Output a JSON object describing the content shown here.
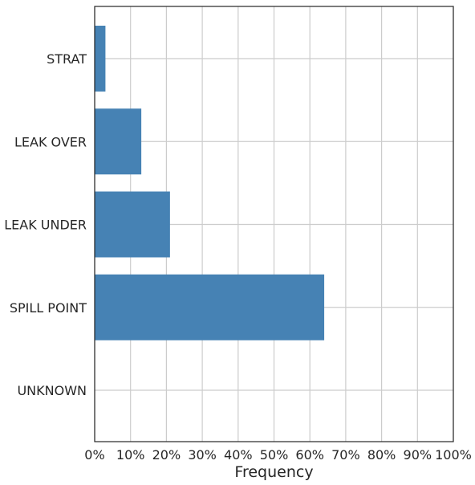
{
  "chart_data": {
    "type": "bar",
    "orientation": "horizontal",
    "categories": [
      "STRAT",
      "LEAK OVER",
      "LEAK UNDER",
      "SPILL POINT",
      "UNKNOWN"
    ],
    "values": [
      3,
      13,
      21,
      64,
      0
    ],
    "xlabel": "Frequency",
    "ylabel": "",
    "xlim": [
      0,
      100
    ],
    "x_ticks": [
      "0%",
      "10%",
      "20%",
      "30%",
      "40%",
      "50%",
      "60%",
      "70%",
      "80%",
      "90%",
      "100%"
    ],
    "grid": true,
    "bar_color": "#4682b4",
    "grid_color": "#cccccc",
    "axis_color": "#262626"
  }
}
